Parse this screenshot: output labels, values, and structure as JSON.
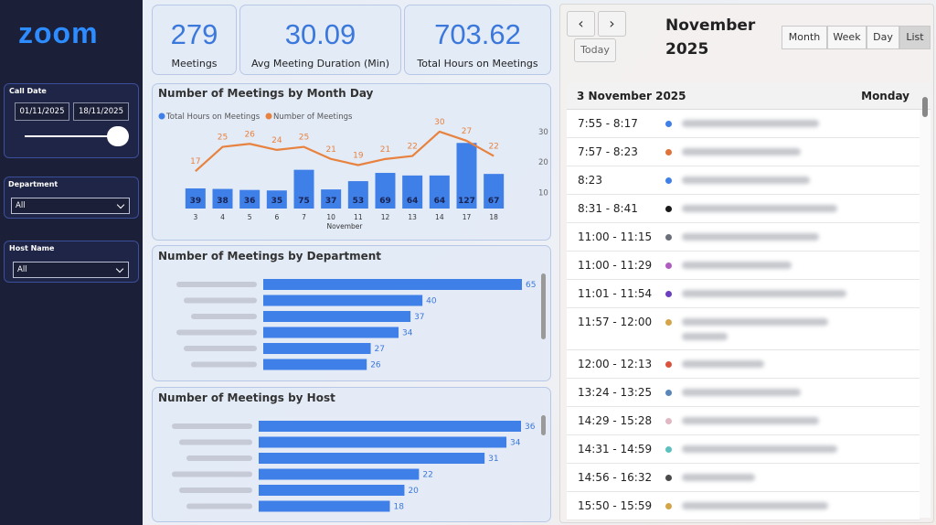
{
  "sidebar": {
    "logo": "zoom",
    "call_date": {
      "label": "Call Date",
      "start": "01/11/2025",
      "end": "18/11/2025"
    },
    "department": {
      "label": "Department",
      "value": "All"
    },
    "host_name": {
      "label": "Host Name",
      "value": "All"
    }
  },
  "kpis": [
    {
      "value": 279,
      "label": "Meetings"
    },
    {
      "value": 30.09,
      "label": "Avg Meeting Duration (Min)"
    },
    {
      "value": 703.62,
      "label": "Total Hours on Meetings"
    }
  ],
  "chart_data": [
    {
      "type": "combo",
      "title": "Number of Meetings by Month Day",
      "x_label": "November",
      "categories": [
        "3",
        "4",
        "5",
        "6",
        "7",
        "10",
        "11",
        "12",
        "13",
        "14",
        "17",
        "18"
      ],
      "series": [
        {
          "name": "Total Hours on Meetings",
          "type": "bar",
          "color": "#3f7fe8",
          "values": [
            39,
            38,
            36,
            35,
            75,
            37,
            53,
            69,
            64,
            64,
            127,
            67
          ]
        },
        {
          "name": "Number of Meetings",
          "type": "line",
          "color": "#e8823f",
          "axis": "y2",
          "values": [
            17,
            25,
            26,
            24,
            25,
            21,
            19,
            21,
            22,
            30,
            27,
            22
          ]
        }
      ],
      "ylim": [
        0,
        170
      ],
      "y2lim": [
        5,
        33
      ],
      "y2ticks": [
        10,
        20,
        30
      ]
    },
    {
      "type": "barh",
      "title": "Number of Meetings by Department",
      "categories": [
        null,
        null,
        null,
        null,
        null,
        null
      ],
      "values": [
        65,
        40,
        37,
        34,
        27,
        26
      ],
      "color": "#3f7fe8",
      "xlim": [
        0,
        65
      ]
    },
    {
      "type": "barh",
      "title": "Number of Meetings by Host",
      "categories": [
        null,
        null,
        null,
        null,
        null,
        null
      ],
      "values": [
        36,
        34,
        31,
        22,
        20,
        18
      ],
      "color": "#3f7fe8",
      "xlim": [
        0,
        36
      ]
    }
  ],
  "calendar": {
    "month": "November",
    "year": "2025",
    "today": "Today",
    "views": [
      "Month",
      "Week",
      "Day",
      "List"
    ],
    "active_view_index": 3,
    "day_header": {
      "date": "3 November 2025",
      "weekday": "Monday"
    },
    "events": [
      {
        "time": "7:55 - 8:17",
        "color": "#3f7fe8"
      },
      {
        "time": "7:57 - 8:23",
        "color": "#e0733a"
      },
      {
        "time": "8:23",
        "color": "#3f7fe8"
      },
      {
        "time": "8:31 - 8:41",
        "color": "#1a1a1a"
      },
      {
        "time": "11:00 - 11:15",
        "color": "#6b6f7a"
      },
      {
        "time": "11:00 - 11:29",
        "color": "#b05cc0"
      },
      {
        "time": "11:01 - 11:54",
        "color": "#6a3fc0"
      },
      {
        "time": "11:57 - 12:00",
        "color": "#d4a548"
      },
      {
        "time": "12:00 - 12:13",
        "color": "#d9533f"
      },
      {
        "time": "13:24 - 13:25",
        "color": "#5a86b8"
      },
      {
        "time": "14:29 - 15:28",
        "color": "#e0b8c4"
      },
      {
        "time": "14:31 - 14:59",
        "color": "#5cc0c0"
      },
      {
        "time": "14:56 - 16:32",
        "color": "#4a4a4a"
      },
      {
        "time": "15:50 - 15:59",
        "color": "#d4a548"
      }
    ]
  }
}
